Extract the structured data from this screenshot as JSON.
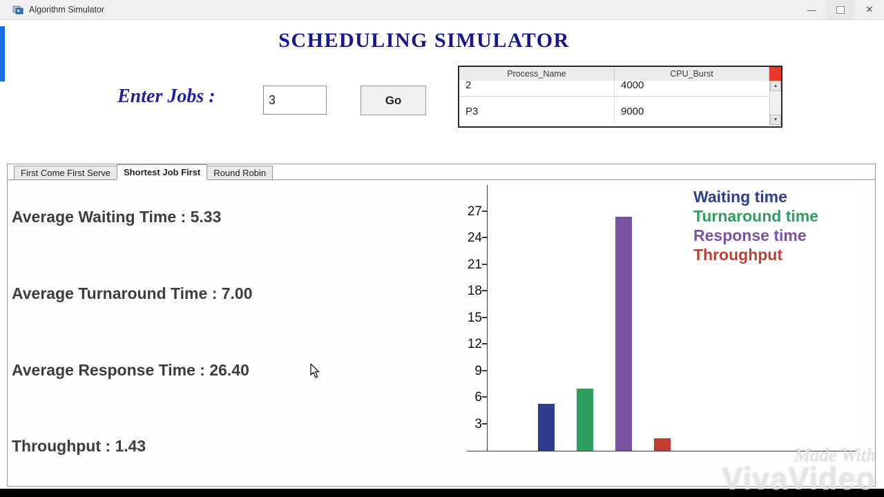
{
  "window": {
    "title": "Algorithm Simulator",
    "controls": {
      "minimize": "—",
      "close": "✕"
    }
  },
  "header": {
    "title": "SCHEDULING SIMULATOR"
  },
  "jobs": {
    "label": "Enter Jobs :",
    "value": "3",
    "go": "Go"
  },
  "process_table": {
    "columns": [
      "Process_Name",
      "CPU_Burst"
    ],
    "rows": [
      {
        "name": "2",
        "burst": "4000"
      },
      {
        "name": "P3",
        "burst": "9000"
      }
    ]
  },
  "tabs": [
    {
      "label": "First Come First Serve"
    },
    {
      "label": "Shortest Job First"
    },
    {
      "label": "Round Robin"
    }
  ],
  "stats": {
    "waiting": "Average Waiting Time : 5.33",
    "turnaround": "Average Turnaround Time : 7.00",
    "response": "Average Response Time : 26.40",
    "throughput": "Throughput : 1.43"
  },
  "chart_data": {
    "type": "bar",
    "title": "",
    "xlabel": "",
    "ylabel": "",
    "categories": [
      "Waiting time",
      "Turnaround time",
      "Response time",
      "Throughput"
    ],
    "values": [
      5.33,
      7.0,
      26.4,
      1.43
    ],
    "colors": [
      "#2e3d8e",
      "#2f9e5e",
      "#7a53a0",
      "#bf4032"
    ],
    "yticks": [
      3,
      6,
      9,
      12,
      15,
      18,
      21,
      24,
      27
    ],
    "ylim": [
      0,
      30
    ],
    "grid": false,
    "legend_position": "top-right"
  },
  "watermark": {
    "line1": "Made With",
    "line2": "VivaVideo"
  }
}
